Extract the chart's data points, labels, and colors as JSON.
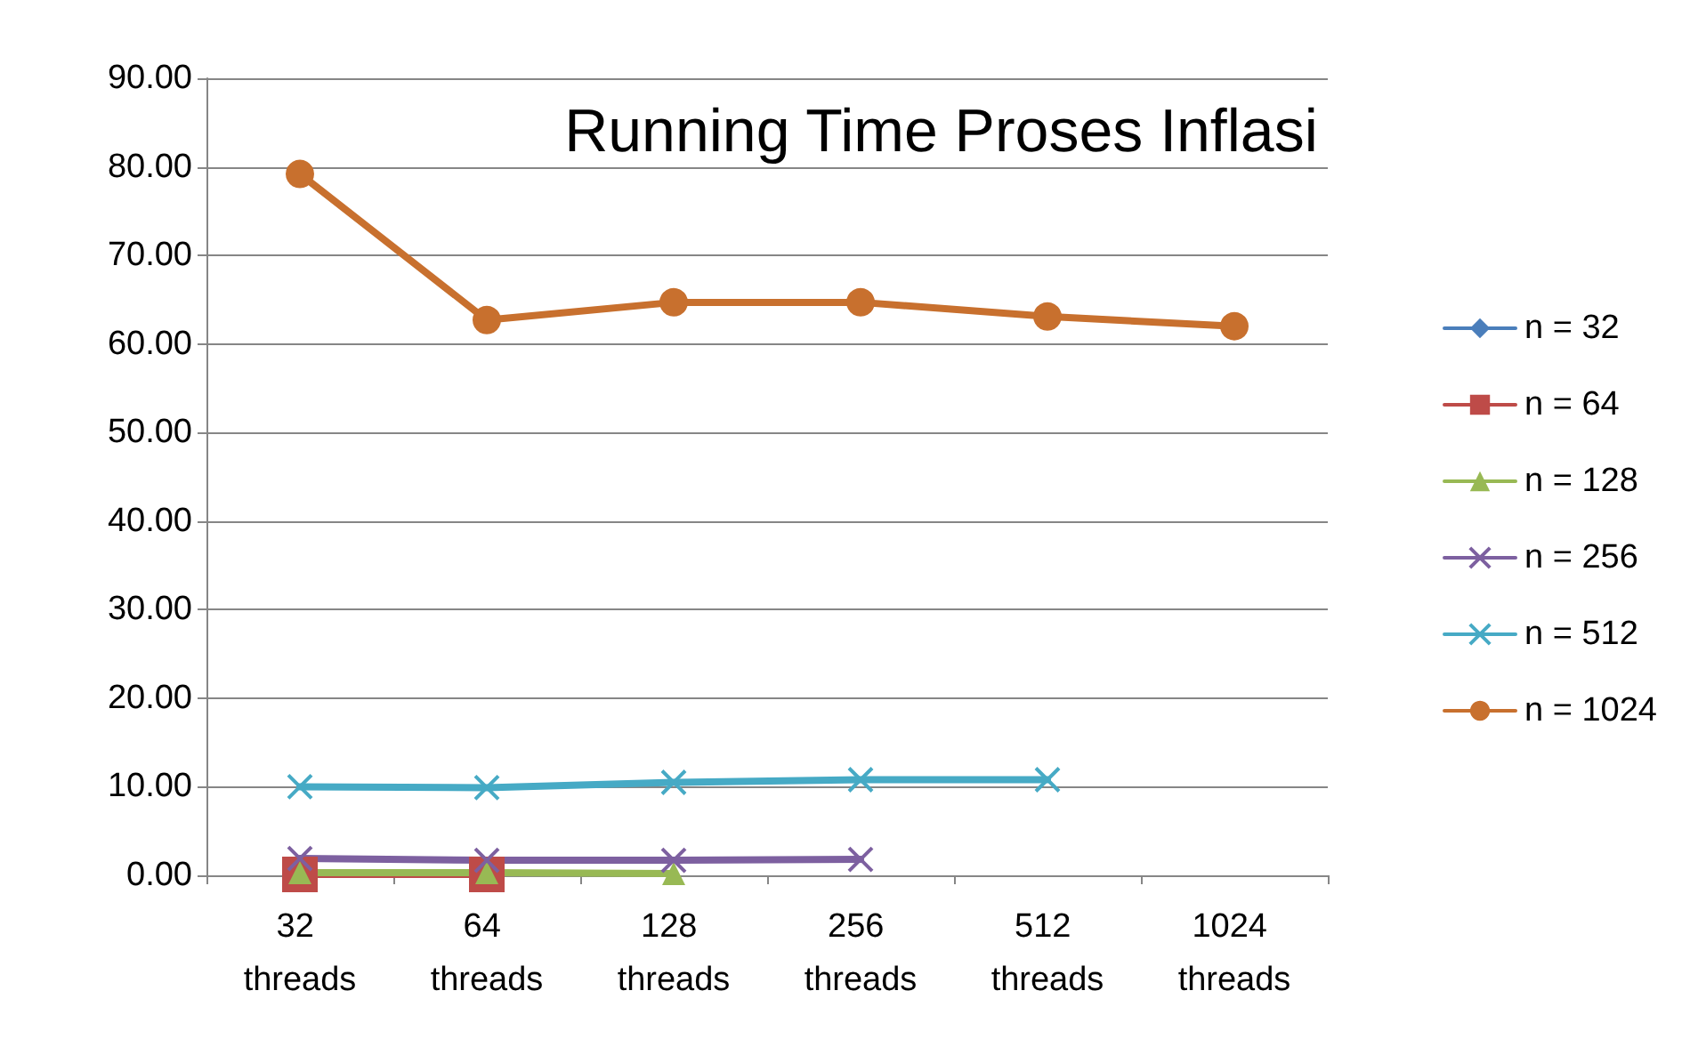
{
  "chart_data": {
    "type": "line",
    "title": "Running Time Proses Inflasi",
    "categories": [
      "32 threads",
      "64 threads",
      "128 threads",
      "256 threads",
      "512 threads",
      "1024 threads"
    ],
    "series": [
      {
        "name": "n = 32",
        "color": "#4a7ebb",
        "marker": "diamond",
        "values": [
          null,
          null,
          null,
          null,
          null,
          null
        ]
      },
      {
        "name": "n = 64",
        "color": "#be4b48",
        "marker": "square",
        "values": [
          0.1,
          0.1,
          null,
          null,
          null,
          null
        ]
      },
      {
        "name": "n = 128",
        "color": "#98b954",
        "marker": "triangle",
        "values": [
          0.3,
          0.3,
          0.2,
          null,
          null,
          null
        ]
      },
      {
        "name": "n = 256",
        "color": "#7d60a0",
        "marker": "cross",
        "values": [
          1.9,
          1.7,
          1.7,
          1.8,
          null,
          null
        ]
      },
      {
        "name": "n = 512",
        "color": "#46aac5",
        "marker": "cross",
        "values": [
          10.0,
          9.9,
          10.5,
          10.8,
          10.8,
          null
        ]
      },
      {
        "name": "n = 1024",
        "color": "#c8702e",
        "marker": "circle",
        "values": [
          79.2,
          62.7,
          64.7,
          64.7,
          63.1,
          62.0
        ]
      }
    ],
    "ylim": [
      0,
      90
    ],
    "yticks": [
      {
        "value": 0,
        "label": "0.00"
      },
      {
        "value": 10,
        "label": "10.00"
      },
      {
        "value": 20,
        "label": "20.00"
      },
      {
        "value": 30,
        "label": "30.00"
      },
      {
        "value": 40,
        "label": "40.00"
      },
      {
        "value": 50,
        "label": "50.00"
      },
      {
        "value": 60,
        "label": "60.00"
      },
      {
        "value": 70,
        "label": "70.00"
      },
      {
        "value": 80,
        "label": "80.00"
      },
      {
        "value": 90,
        "label": "90.00"
      }
    ],
    "grid": "y",
    "legend": "right",
    "line_style": "solid"
  }
}
